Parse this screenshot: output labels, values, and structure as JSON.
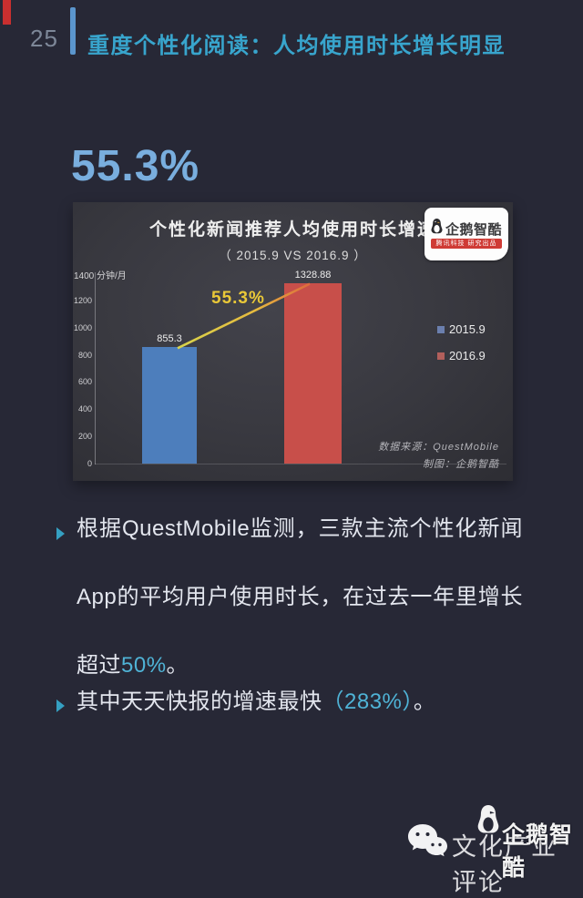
{
  "page": {
    "number": "25",
    "title": "重度个性化阅读：人均使用时长增长明显"
  },
  "headline_stat": "55.3%",
  "chart_data": {
    "type": "bar",
    "title": "个性化新闻推荐人均使用时长增速",
    "subtitle": "（ 2015.9 VS 2016.9 ）",
    "unit_label": "分钟/月",
    "categories": [
      "2015.9",
      "2016.9"
    ],
    "values": [
      855.3,
      1328.88
    ],
    "value_labels": [
      "855.3",
      "1328.88"
    ],
    "bar_colors": [
      "#4d7ebc",
      "#c84f4a"
    ],
    "ylim": [
      0,
      1400
    ],
    "ytick_step": 200,
    "grid": "off",
    "legend_position": "right",
    "legend": [
      {
        "label": "2015.9",
        "color": "#6b7fae"
      },
      {
        "label": "2016.9",
        "color": "#b25f5b"
      }
    ],
    "growth_label": "55.3%",
    "source": "数据来源：QuestMobile",
    "credit": "制图：企鹅智酷",
    "badge": {
      "brand": "企鹅智酷",
      "tagline": "腾讯科技 研究出品"
    }
  },
  "bullets": [
    {
      "pre": "根据QuestMobile监测，三款主流个性化新闻App的平均用户使用时长，在过去一年里增长超过",
      "highlight": "50%",
      "post": "。"
    },
    {
      "pre": "其中天天快报的增速最快",
      "highlight": "（283%）",
      "post": "。"
    }
  ],
  "footer": {
    "wechat_account": "文化产业评论",
    "brand": "企鹅智酷"
  },
  "colors": {
    "background": "#272836",
    "accent_teal": "#38a5cd",
    "highlight_teal": "#4fb3d6",
    "headline_blue": "#79aede",
    "bar_blue": "#4d7ebc",
    "bar_red": "#c84f4a",
    "line_yellow": "#e6c33c"
  }
}
